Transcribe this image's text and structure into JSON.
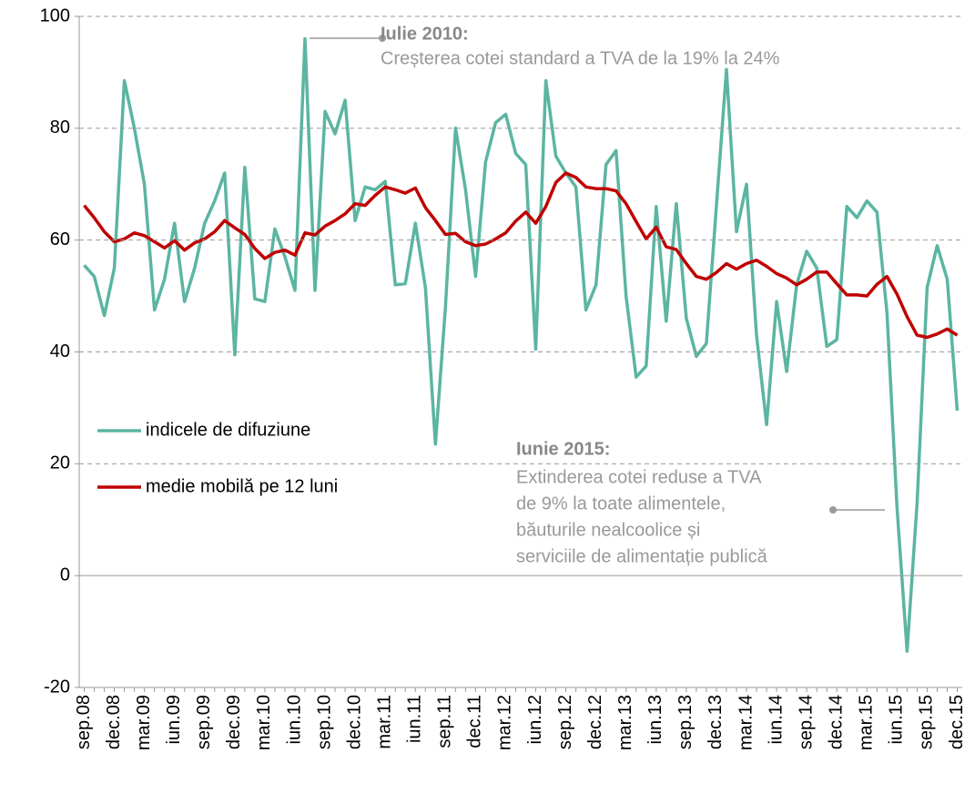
{
  "chart_data": {
    "type": "line",
    "categories": [
      "sep.08",
      null,
      null,
      "dec.08",
      null,
      null,
      "mar.09",
      null,
      null,
      "iun.09",
      null,
      null,
      "sep.09",
      null,
      null,
      "dec.09",
      null,
      null,
      "mar.10",
      null,
      null,
      "iun.10",
      null,
      null,
      "sep.10",
      null,
      null,
      "dec.10",
      null,
      null,
      "mar.11",
      null,
      null,
      "iun.11",
      null,
      null,
      "sep.11",
      null,
      null,
      "dec.11",
      null,
      null,
      "mar.12",
      null,
      null,
      "iun.12",
      null,
      null,
      "sep.12",
      null,
      null,
      "dec.12",
      null,
      null,
      "mar.13",
      null,
      null,
      "iun.13",
      null,
      null,
      "sep.13",
      null,
      null,
      "dec.13",
      null,
      null,
      "mar.14",
      null,
      null,
      "iun.14",
      null,
      null,
      "sep.14",
      null,
      null,
      "dec.14",
      null,
      null,
      "mar.15",
      null,
      null,
      "iun.15",
      null,
      null,
      "sep.15",
      null,
      null,
      "dec.15"
    ],
    "series": [
      {
        "name": "indicele de difuziune",
        "color": "#5bb5a2",
        "values": [
          55.5,
          53.5,
          46.5,
          55,
          88.5,
          80,
          70,
          47.5,
          53,
          63,
          49,
          55,
          63,
          67,
          72,
          39.5,
          73,
          49.5,
          49,
          62,
          57,
          51,
          96,
          51,
          83,
          79,
          85,
          63.5,
          69.5,
          69,
          70.5,
          52,
          52.2,
          63,
          51.5,
          23.5,
          48,
          80,
          69,
          53.5,
          74,
          81,
          82.5,
          75.5,
          73.5,
          40.5,
          88.5,
          75,
          72,
          69.5,
          47.5,
          52,
          73.5,
          76,
          50,
          35.5,
          37.5,
          66,
          45.5,
          66.5,
          46,
          39.2,
          41.5,
          66,
          90.5,
          61.5,
          70,
          43,
          27,
          49,
          36.5,
          52,
          58,
          55,
          41,
          42.2,
          66,
          64,
          67,
          65,
          47,
          12,
          -13.5,
          13,
          51.5,
          59,
          53,
          29.5
        ]
      },
      {
        "name": "medie mobilă pe 12 luni",
        "color": "#c00000",
        "values": [
          66.2,
          64,
          61.5,
          59.7,
          60.2,
          61.3,
          60.8,
          59.7,
          58.6,
          59.9,
          58.2,
          59.5,
          60.2,
          61.5,
          63.5,
          62.2,
          61,
          58.5,
          56.7,
          57.8,
          58.2,
          57.3,
          61.3,
          60.9,
          62.5,
          63.5,
          64.7,
          66.5,
          66.2,
          68,
          69.5,
          69,
          68.4,
          69.3,
          65.8,
          63.5,
          61,
          61.2,
          59.7,
          59,
          59.3,
          60.2,
          61.3,
          63.4,
          65,
          63,
          66,
          70.3,
          72,
          71.2,
          69.5,
          69.2,
          69.2,
          68.8,
          66.5,
          63.3,
          60.2,
          62.3,
          58.8,
          58.3,
          55.8,
          53.5,
          53,
          54.2,
          55.8,
          54.8,
          55.8,
          56.4,
          55.3,
          54,
          53.2,
          52,
          53,
          54.3,
          54.3,
          52.2,
          50.2,
          50.2,
          50,
          52.1,
          53.5,
          50.3,
          46.3,
          43,
          42.6,
          43.2,
          44.1,
          43
        ]
      }
    ],
    "ylim": [
      -20,
      100
    ],
    "yticks": [
      -20,
      0,
      20,
      40,
      60,
      80,
      100
    ],
    "grid": true,
    "annotations": [
      {
        "title": "Iulie 2010:",
        "lines": [
          "Creșterea cotei standard a TVA de la 19% la 24%"
        ]
      },
      {
        "title": "Iunie 2015:",
        "lines": [
          "Extinderea cotei reduse a TVA",
          "de 9% la toate alimentele,",
          "băuturile nealcoolice și",
          "serviciile de alimentație publică"
        ]
      }
    ]
  }
}
